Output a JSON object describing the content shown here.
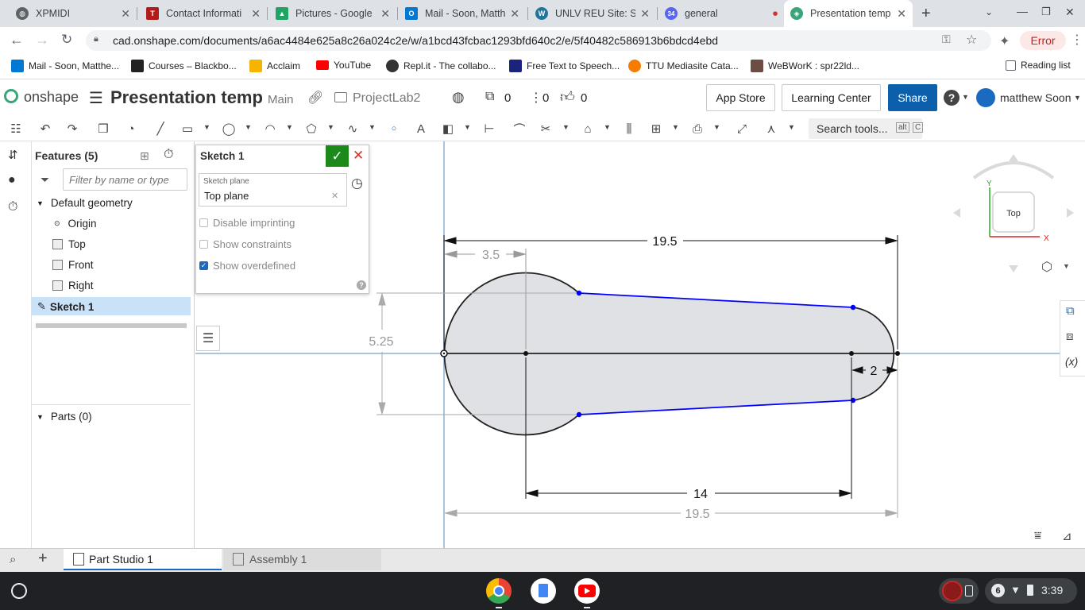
{
  "browser": {
    "tabs": [
      {
        "title": "XPMIDI",
        "color": "#5f6368"
      },
      {
        "title": "Contact Informati",
        "color": "#b31b1b"
      },
      {
        "title": "Pictures - Google D",
        "color": "#1fa463"
      },
      {
        "title": "Mail - Soon, Matth",
        "color": "#0078d4"
      },
      {
        "title": "UNLV REU Site: Sn",
        "color": "#21759b"
      },
      {
        "title": "general",
        "color": "#5865f2"
      },
      {
        "title": "Presentation temp",
        "color": "#3aa57a"
      }
    ],
    "general_badge": "34",
    "url": "cad.onshape.com/documents/a6ac4484e625a8c26a024c2e/w/a1bcd43fcbac1293bfd640c2/e/5f40482c586913b6bdcd4ebd",
    "error_label": "Error",
    "bookmarks": [
      {
        "label": "Mail - Soon, Matthe...",
        "color": "#0078d4"
      },
      {
        "label": "Courses – Blackbo...",
        "color": "#222222"
      },
      {
        "label": "Acclaim",
        "color": "#f4b400"
      },
      {
        "label": "YouTube",
        "color": "#ff0000"
      },
      {
        "label": "Repl.it - The collabo...",
        "color": "#333333"
      },
      {
        "label": "Free Text to Speech...",
        "color": "#1a237e"
      },
      {
        "label": "TTU Mediasite Cata...",
        "color": "#f57c00"
      },
      {
        "label": "WeBWorK : spr22ld...",
        "color": "#6d4c41"
      }
    ],
    "reading_list": "Reading list"
  },
  "onshape": {
    "logo": "onshape",
    "doc_title": "Presentation temp",
    "branch": "Main",
    "folder": "ProjectLab2",
    "counts": {
      "docs": "0",
      "comments": "0",
      "likes": "0"
    },
    "app_store": "App Store",
    "learning_center": "Learning Center",
    "share": "Share",
    "user": "matthew Soon",
    "search_tools": "Search tools...",
    "shortcut_alt": "alt",
    "shortcut_c": "C"
  },
  "features": {
    "header": "Features (5)",
    "filter_placeholder": "Filter by name or type",
    "default_geometry": "Default geometry",
    "items": [
      "Origin",
      "Top",
      "Front",
      "Right"
    ],
    "sketch": "Sketch 1",
    "parts": "Parts (0)"
  },
  "sketch_dialog": {
    "title": "Sketch 1",
    "plane_label": "Sketch plane",
    "plane_value": "Top plane",
    "disable_imprinting": "Disable imprinting",
    "show_constraints": "Show constraints",
    "show_overdefined": "Show overdefined",
    "show_overdefined_checked": true
  },
  "canvas": {
    "dims": {
      "top_width": "19.5",
      "circle_offset": "3.5",
      "height": "5.25",
      "right_radius": "2",
      "center_distance": "14",
      "bottom_width": "19.5"
    },
    "view_cube": {
      "face": "Top",
      "x": "X",
      "y": "Y"
    }
  },
  "bottom_tabs": {
    "part_studio": "Part Studio 1",
    "assembly": "Assembly 1"
  },
  "shelf": {
    "notif_count": "6",
    "time": "3:39"
  },
  "colors": {
    "accent": "#0b5fab",
    "confirm": "#1b8a1b",
    "cancel": "#d93025",
    "sketch_line": "#0000ff"
  }
}
